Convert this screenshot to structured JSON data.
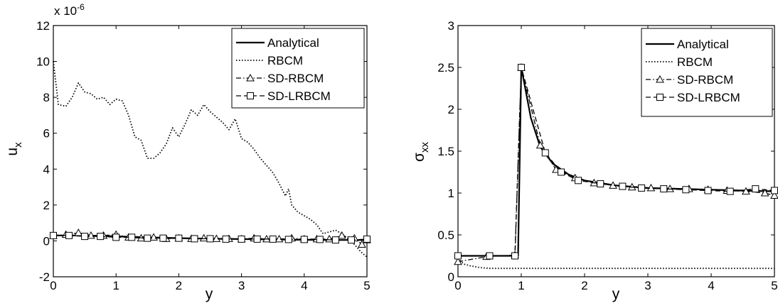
{
  "chart_data": [
    {
      "type": "line",
      "xlabel": "y",
      "ylabel": "u",
      "ylabel_subscript": "x",
      "y_multiplier": "x 10",
      "y_multiplier_exp": "-6",
      "xlim": [
        0,
        5
      ],
      "ylim": [
        -2,
        12
      ],
      "xticks": [
        "0",
        "1",
        "2",
        "3",
        "4",
        "5"
      ],
      "yticks": [
        "-2",
        "0",
        "2",
        "4",
        "6",
        "8",
        "10",
        "12"
      ],
      "grid": false,
      "legend_position": "top-right",
      "series": [
        {
          "name": "Analytical",
          "style": "solid",
          "marker": "none",
          "x": [
            0,
            0.5,
            1,
            1.5,
            2,
            2.5,
            3,
            3.5,
            4,
            4.5,
            5
          ],
          "y": [
            0.3,
            0.3,
            0.25,
            0.2,
            0.15,
            0.12,
            0.1,
            0.08,
            0.06,
            0.05,
            0.05
          ]
        },
        {
          "name": "RBCM",
          "style": "dotted",
          "marker": "none",
          "x": [
            0,
            0.08,
            0.2,
            0.3,
            0.4,
            0.5,
            0.6,
            0.7,
            0.8,
            0.9,
            1.0,
            1.1,
            1.2,
            1.3,
            1.4,
            1.5,
            1.6,
            1.7,
            1.8,
            1.9,
            2.0,
            2.1,
            2.2,
            2.3,
            2.4,
            2.5,
            2.6,
            2.7,
            2.8,
            2.9,
            3.0,
            3.1,
            3.2,
            3.3,
            3.4,
            3.5,
            3.6,
            3.7,
            3.75,
            3.8,
            3.9,
            4.0,
            4.1,
            4.2,
            4.3,
            4.4,
            4.5,
            4.6,
            4.7,
            4.8,
            4.9,
            5.0
          ],
          "y": [
            10,
            7.6,
            7.5,
            8.0,
            8.8,
            8.3,
            8.2,
            7.9,
            8.0,
            7.6,
            7.9,
            7.8,
            7.0,
            5.8,
            5.6,
            4.6,
            4.6,
            4.9,
            5.4,
            6.3,
            5.8,
            6.5,
            7.3,
            7.0,
            7.6,
            7.2,
            6.9,
            6.6,
            6.2,
            6.8,
            5.7,
            5.5,
            5.1,
            4.6,
            4.2,
            3.8,
            3.2,
            2.5,
            2.9,
            2.0,
            1.6,
            1.4,
            1.2,
            0.9,
            0.4,
            0.5,
            0.6,
            0.4,
            0.1,
            -0.2,
            -0.6,
            -0.9
          ]
        },
        {
          "name": "SD-RBCM",
          "style": "dashdot",
          "marker": "triangle",
          "x": [
            0,
            0.2,
            0.4,
            0.6,
            0.8,
            1.0,
            1.2,
            1.4,
            1.6,
            1.8,
            2.0,
            2.2,
            2.4,
            2.6,
            2.8,
            3.0,
            3.2,
            3.4,
            3.6,
            3.8,
            4.0,
            4.2,
            4.4,
            4.6,
            4.8,
            4.92,
            5.0
          ],
          "y": [
            0.3,
            0.35,
            0.45,
            0.3,
            0.3,
            0.35,
            0.2,
            0.15,
            0.2,
            0.12,
            0.15,
            0.12,
            0.15,
            0.12,
            0.12,
            0.1,
            0.15,
            0.1,
            0.1,
            0.15,
            0.1,
            0.1,
            0.1,
            0.3,
            0.15,
            -0.2,
            0.05
          ]
        },
        {
          "name": "SD-LRBCM",
          "style": "dashed",
          "marker": "square",
          "x": [
            0,
            0.25,
            0.5,
            0.75,
            1.0,
            1.25,
            1.5,
            1.75,
            2.0,
            2.25,
            2.5,
            2.75,
            3.0,
            3.25,
            3.5,
            3.75,
            4.0,
            4.25,
            4.5,
            4.75,
            5.0
          ],
          "y": [
            0.3,
            0.3,
            0.25,
            0.25,
            0.2,
            0.2,
            0.15,
            0.15,
            0.15,
            0.12,
            0.12,
            0.1,
            0.1,
            0.1,
            0.1,
            0.08,
            0.08,
            0.08,
            0.05,
            0.05,
            0.1
          ]
        }
      ]
    },
    {
      "type": "line",
      "xlabel": "y",
      "ylabel": "σ",
      "ylabel_subscript": "xx",
      "xlim": [
        0,
        5
      ],
      "ylim": [
        0,
        3
      ],
      "xticks": [
        "0",
        "1",
        "2",
        "3",
        "4",
        "5"
      ],
      "yticks": [
        "0",
        "0.5",
        "1",
        "1.5",
        "2",
        "2.5",
        "3"
      ],
      "grid": false,
      "legend_position": "top-right",
      "series": [
        {
          "name": "Analytical",
          "style": "solid",
          "marker": "none",
          "x": [
            0,
            0.9,
            0.95,
            1.0,
            1.05,
            1.15,
            1.3,
            1.5,
            1.75,
            2.0,
            2.5,
            3.0,
            3.5,
            4.0,
            4.5,
            5.0
          ],
          "y": [
            0.25,
            0.25,
            0.25,
            2.5,
            2.3,
            1.9,
            1.55,
            1.35,
            1.22,
            1.15,
            1.09,
            1.06,
            1.05,
            1.04,
            1.03,
            1.02
          ]
        },
        {
          "name": "RBCM",
          "style": "dotted",
          "marker": "none",
          "x": [
            0,
            0.05,
            0.1,
            0.2,
            0.35,
            0.5,
            1.0,
            1.5,
            2.0,
            3.0,
            4.0,
            5.0
          ],
          "y": [
            0.22,
            0.18,
            0.15,
            0.13,
            0.11,
            0.1,
            0.1,
            0.1,
            0.1,
            0.1,
            0.1,
            0.1
          ]
        },
        {
          "name": "SD-RBCM",
          "style": "dashdot",
          "marker": "triangle",
          "x": [
            0,
            0.45,
            0.9,
            1.0,
            1.3,
            1.55,
            1.85,
            2.15,
            2.45,
            2.75,
            3.05,
            3.35,
            3.65,
            3.95,
            4.25,
            4.55,
            4.85,
            5.0
          ],
          "y": [
            0.18,
            0.24,
            0.26,
            2.5,
            1.57,
            1.28,
            1.18,
            1.12,
            1.09,
            1.07,
            1.06,
            1.05,
            1.05,
            1.04,
            1.03,
            1.02,
            1.0,
            0.97
          ]
        },
        {
          "name": "SD-LRBCM",
          "style": "dashed",
          "marker": "square",
          "x": [
            0,
            0.5,
            0.9,
            1.0,
            1.38,
            1.63,
            1.9,
            2.25,
            2.6,
            2.9,
            3.25,
            3.6,
            3.95,
            4.3,
            4.7,
            5.0
          ],
          "y": [
            0.25,
            0.25,
            0.25,
            2.5,
            1.48,
            1.25,
            1.15,
            1.11,
            1.08,
            1.06,
            1.05,
            1.04,
            1.03,
            1.02,
            1.05,
            1.03
          ]
        }
      ]
    }
  ]
}
